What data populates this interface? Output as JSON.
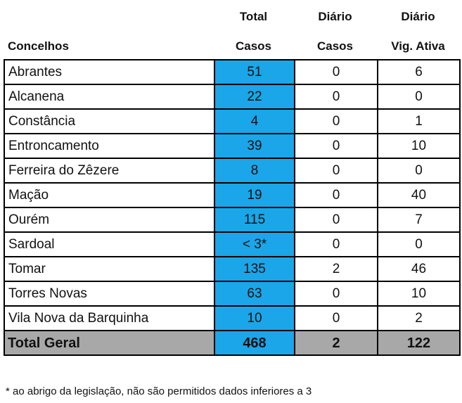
{
  "header": {
    "concelhos": "Concelhos",
    "total_line1": "Total",
    "total_line2": "Casos",
    "diario_casos_line1": "Diário",
    "diario_casos_line2": "Casos",
    "diario_vig_line1": "Diário",
    "diario_vig_line2": "Vig. Ativa"
  },
  "rows": [
    {
      "concelho": "Abrantes",
      "total": "51",
      "diario_casos": "0",
      "diario_vig": "6"
    },
    {
      "concelho": "Alcanena",
      "total": "22",
      "diario_casos": "0",
      "diario_vig": "0"
    },
    {
      "concelho": "Constância",
      "total": "4",
      "diario_casos": "0",
      "diario_vig": "1"
    },
    {
      "concelho": "Entroncamento",
      "total": "39",
      "diario_casos": "0",
      "diario_vig": "10"
    },
    {
      "concelho": "Ferreira do Zêzere",
      "total": "8",
      "diario_casos": "0",
      "diario_vig": "0"
    },
    {
      "concelho": "Mação",
      "total": "19",
      "diario_casos": "0",
      "diario_vig": "40"
    },
    {
      "concelho": "Ourém",
      "total": "115",
      "diario_casos": "0",
      "diario_vig": "7"
    },
    {
      "concelho": "Sardoal",
      "total": "< 3*",
      "diario_casos": "0",
      "diario_vig": "0"
    },
    {
      "concelho": "Tomar",
      "total": "135",
      "diario_casos": "2",
      "diario_vig": "46"
    },
    {
      "concelho": "Torres Novas",
      "total": "63",
      "diario_casos": "0",
      "diario_vig": "10"
    },
    {
      "concelho": "Vila Nova da Barquinha",
      "total": "10",
      "diario_casos": "0",
      "diario_vig": "2"
    }
  ],
  "totals": {
    "label": "Total Geral",
    "total": "468",
    "diario_casos": "2",
    "diario_vig": "122"
  },
  "footnote": "* ao abrigo da legislação, não são permitidos dados inferiores a 3",
  "colors": {
    "total_column": "#1aa6e8",
    "totals_row": "#a8a8a8"
  }
}
